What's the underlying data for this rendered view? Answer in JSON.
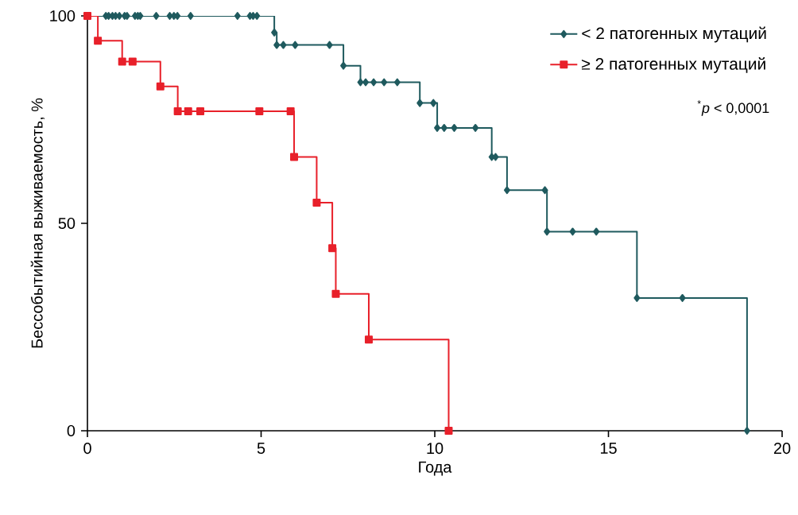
{
  "chart_data": {
    "type": "step",
    "xlabel": "Года",
    "ylabel": "Бессобытийная выживаемость, %",
    "xlim": [
      0,
      20
    ],
    "ylim": [
      0,
      100
    ],
    "xticks": [
      0,
      5,
      10,
      15,
      20
    ],
    "yticks": [
      0,
      50,
      100
    ],
    "grid": false,
    "legend": "top right",
    "annotations": [
      "$^{*}$*p* < 0,0001"
    ],
    "series": [
      {
        "name": "< 2 патогенных мутаций",
        "color": "#1f5a5e",
        "marker": "diamond",
        "x": [
          0,
          0.53,
          0.61,
          0.72,
          0.81,
          0.92,
          1.07,
          1.14,
          1.37,
          1.45,
          1.52,
          1.98,
          2.37,
          2.49,
          2.59,
          2.97,
          4.32,
          4.68,
          4.77,
          4.88,
          5.38,
          5.45,
          5.64,
          5.98,
          6.97,
          7.37,
          7.86,
          8.01,
          8.24,
          8.54,
          8.92,
          9.57,
          9.96,
          10.07,
          10.27,
          10.56,
          11.17,
          11.64,
          11.75,
          12.08,
          13.17,
          13.23,
          13.97,
          14.65,
          15.82,
          17.13,
          18.99
        ],
        "values": [
          100,
          100,
          100,
          100,
          100,
          100,
          100,
          100,
          100,
          100,
          100,
          100,
          100,
          100,
          100,
          100,
          100,
          100,
          100,
          100,
          96,
          93,
          93,
          93,
          93,
          88,
          84,
          84,
          84,
          84,
          84,
          79,
          79,
          73,
          73,
          73,
          73,
          66,
          66,
          58,
          58,
          48,
          48,
          48,
          32,
          32,
          0
        ]
      },
      {
        "name": "≥ 2 патогенных мутаций",
        "color": "#e8202a",
        "marker": "square",
        "x": [
          0,
          0.3,
          1.0,
          1.3,
          2.1,
          2.6,
          2.9,
          3.25,
          4.95,
          5.85,
          5.95,
          6.6,
          7.05,
          7.15,
          8.1,
          10.4
        ],
        "values": [
          100,
          94,
          89,
          89,
          83,
          77,
          77,
          77,
          77,
          77,
          66,
          55,
          44,
          33,
          22,
          0
        ]
      }
    ]
  }
}
